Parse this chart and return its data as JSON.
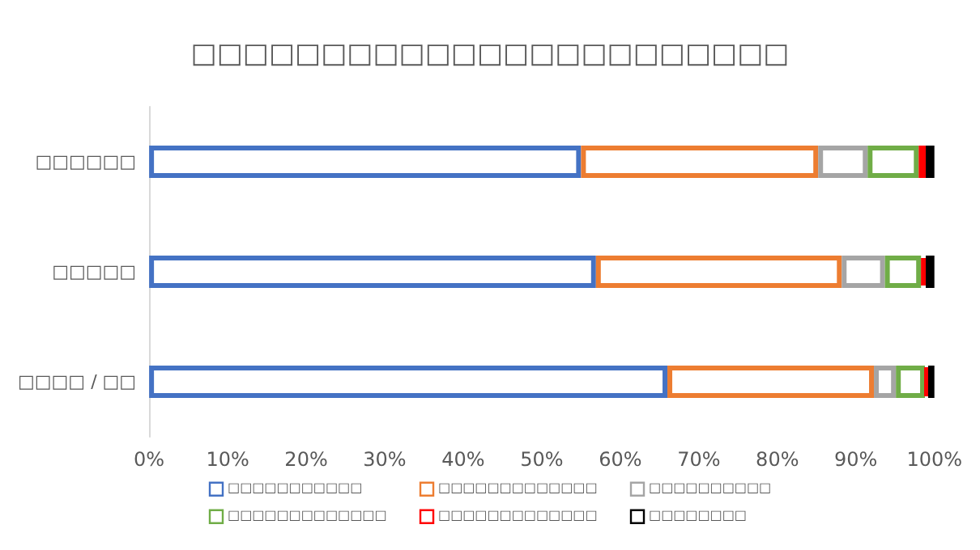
{
  "chart_data": {
    "type": "bar",
    "orientation": "horizontal",
    "stacked": true,
    "title": "□□□□□□□□□□□□□□□□□□□□□□□",
    "categories": [
      "□□□□□□",
      "□□□□□",
      "□□□□ / □□"
    ],
    "series": [
      {
        "name": "□□□□□□□□□□□",
        "color": "#4472c4",
        "values": [
          55,
          56.9,
          66
        ]
      },
      {
        "name": "□□□□□□□□□□□□□",
        "color": "#ed7d31",
        "values": [
          30.2,
          31.3,
          26.3
        ]
      },
      {
        "name": "□□□□□□□□□□",
        "color": "#a5a5a5",
        "values": [
          6.3,
          5.5,
          2.8
        ]
      },
      {
        "name": "□□□□□□□□□□□□□",
        "color": "#70ad47",
        "values": [
          6.5,
          4.6,
          3.7
        ]
      },
      {
        "name": "□□□□□□□□□□□□□",
        "color": "#ff0000",
        "values": [
          0.9,
          0.6,
          0.4
        ]
      },
      {
        "name": "□□□□□□□□",
        "color": "#000000",
        "values": [
          1.1,
          1.1,
          0.8
        ]
      }
    ],
    "xlim": [
      0,
      100
    ],
    "xticks": [
      {
        "value": 0,
        "label": "0%"
      },
      {
        "value": 10,
        "label": "10%"
      },
      {
        "value": 20,
        "label": "20%"
      },
      {
        "value": 30,
        "label": "30%"
      },
      {
        "value": 40,
        "label": "40%"
      },
      {
        "value": 50,
        "label": "50%"
      },
      {
        "value": 60,
        "label": "60%"
      },
      {
        "value": 70,
        "label": "70%"
      },
      {
        "value": 80,
        "label": "80%"
      },
      {
        "value": 90,
        "label": "90%"
      },
      {
        "value": 100,
        "label": "100%"
      }
    ],
    "grid": false,
    "legend": "bottom"
  }
}
